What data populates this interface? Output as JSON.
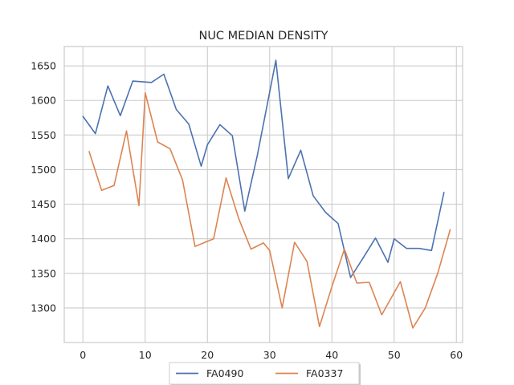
{
  "chart_data": {
    "type": "line",
    "title": "NUC MEDIAN DENSITY",
    "xlabel": "",
    "ylabel": "",
    "xlim": [
      -3,
      61
    ],
    "ylim": [
      1250,
      1678
    ],
    "xticks": [
      0,
      10,
      20,
      30,
      40,
      50,
      60
    ],
    "yticks": [
      1300,
      1350,
      1400,
      1450,
      1500,
      1550,
      1600,
      1650
    ],
    "grid": true,
    "legend": "bottom-center",
    "series": [
      {
        "name": "FA0490",
        "color": "#4c72b0",
        "x": [
          0,
          2,
          4,
          6,
          8,
          11,
          13,
          15,
          17,
          19,
          20,
          22,
          24,
          26,
          28,
          31,
          33,
          35,
          37,
          39,
          41,
          43,
          45,
          47,
          49,
          50,
          52,
          54,
          56,
          58
        ],
        "y": [
          1577,
          1552,
          1621,
          1578,
          1628,
          1626,
          1638,
          1587,
          1566,
          1505,
          1536,
          1565,
          1549,
          1440,
          1520,
          1658,
          1487,
          1528,
          1462,
          1438,
          1422,
          1344,
          1372,
          1401,
          1366,
          1400,
          1386,
          1386,
          1383,
          1467
        ]
      },
      {
        "name": "FA0337",
        "color": "#dd8452",
        "x": [
          1,
          3,
          5,
          7,
          9,
          10,
          12,
          14,
          16,
          18,
          21,
          23,
          25,
          27,
          29,
          30,
          32,
          34,
          36,
          38,
          40,
          42,
          44,
          46,
          48,
          51,
          53,
          55,
          57,
          59
        ],
        "y": [
          1526,
          1470,
          1477,
          1556,
          1448,
          1611,
          1540,
          1530,
          1485,
          1389,
          1400,
          1488,
          1430,
          1385,
          1394,
          1383,
          1300,
          1395,
          1367,
          1273,
          1331,
          1385,
          1336,
          1337,
          1290,
          1338,
          1271,
          1300,
          1350,
          1413
        ]
      }
    ]
  }
}
